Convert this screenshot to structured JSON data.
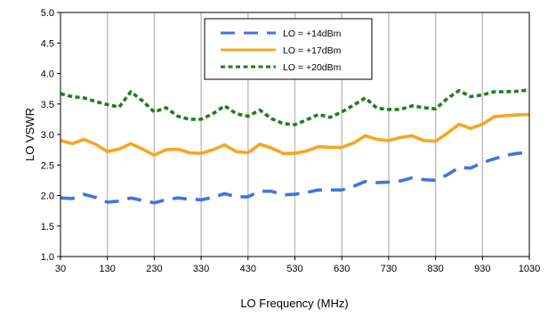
{
  "chart_data": {
    "type": "line",
    "title": "",
    "xlabel": "LO Frequency (MHz)",
    "ylabel": "LO VSWR",
    "xlim": [
      30,
      1030
    ],
    "ylim": [
      1.0,
      5.0
    ],
    "x_ticks": [
      30,
      130,
      230,
      330,
      430,
      530,
      630,
      730,
      830,
      930,
      1030
    ],
    "y_ticks": [
      1.0,
      1.5,
      2.0,
      2.5,
      3.0,
      3.5,
      4.0,
      4.5,
      5.0
    ],
    "x_tick_labels": [
      "30",
      "130",
      "230",
      "330",
      "430",
      "530",
      "630",
      "730",
      "830",
      "930",
      "1030"
    ],
    "y_tick_labels": [
      "1.0",
      "1.5",
      "2.0",
      "2.5",
      "3.0",
      "3.5",
      "4.0",
      "4.5",
      "5.0"
    ],
    "grid": "vertical",
    "legend_position": "top-center",
    "x": [
      30,
      55,
      80,
      105,
      130,
      155,
      180,
      205,
      230,
      255,
      280,
      305,
      330,
      355,
      380,
      405,
      430,
      455,
      480,
      505,
      530,
      555,
      580,
      605,
      630,
      655,
      680,
      705,
      730,
      755,
      780,
      805,
      830,
      855,
      880,
      905,
      930,
      955,
      980,
      1005,
      1030
    ],
    "series": [
      {
        "name": "LO = +14dBm",
        "color": "#4472e0",
        "style": "long-dash",
        "values": [
          1.96,
          1.95,
          2.02,
          1.97,
          1.89,
          1.91,
          1.96,
          1.92,
          1.88,
          1.93,
          1.96,
          1.94,
          1.93,
          1.97,
          2.03,
          1.98,
          1.98,
          2.07,
          2.07,
          2.01,
          2.02,
          2.05,
          2.09,
          2.09,
          2.09,
          2.15,
          2.23,
          2.21,
          2.22,
          2.24,
          2.29,
          2.26,
          2.25,
          2.34,
          2.46,
          2.45,
          2.54,
          2.6,
          2.66,
          2.69,
          2.71
        ]
      },
      {
        "name": "LO = +17dBm",
        "color": "#f5a623",
        "style": "solid",
        "values": [
          2.9,
          2.85,
          2.92,
          2.84,
          2.72,
          2.76,
          2.85,
          2.76,
          2.66,
          2.75,
          2.76,
          2.7,
          2.69,
          2.75,
          2.83,
          2.72,
          2.7,
          2.84,
          2.78,
          2.69,
          2.69,
          2.73,
          2.8,
          2.79,
          2.79,
          2.86,
          2.98,
          2.92,
          2.9,
          2.95,
          2.98,
          2.9,
          2.89,
          3.02,
          3.17,
          3.1,
          3.17,
          3.29,
          3.31,
          3.32,
          3.33
        ]
      },
      {
        "name": "LO = +20dBm",
        "color": "#1e7d1e",
        "style": "short-dash",
        "values": [
          3.67,
          3.62,
          3.6,
          3.54,
          3.49,
          3.45,
          3.7,
          3.55,
          3.37,
          3.44,
          3.3,
          3.25,
          3.25,
          3.34,
          3.47,
          3.34,
          3.3,
          3.4,
          3.26,
          3.18,
          3.16,
          3.24,
          3.33,
          3.28,
          3.37,
          3.48,
          3.6,
          3.43,
          3.41,
          3.41,
          3.47,
          3.44,
          3.42,
          3.59,
          3.72,
          3.62,
          3.65,
          3.7,
          3.7,
          3.71,
          3.73
        ]
      }
    ]
  }
}
